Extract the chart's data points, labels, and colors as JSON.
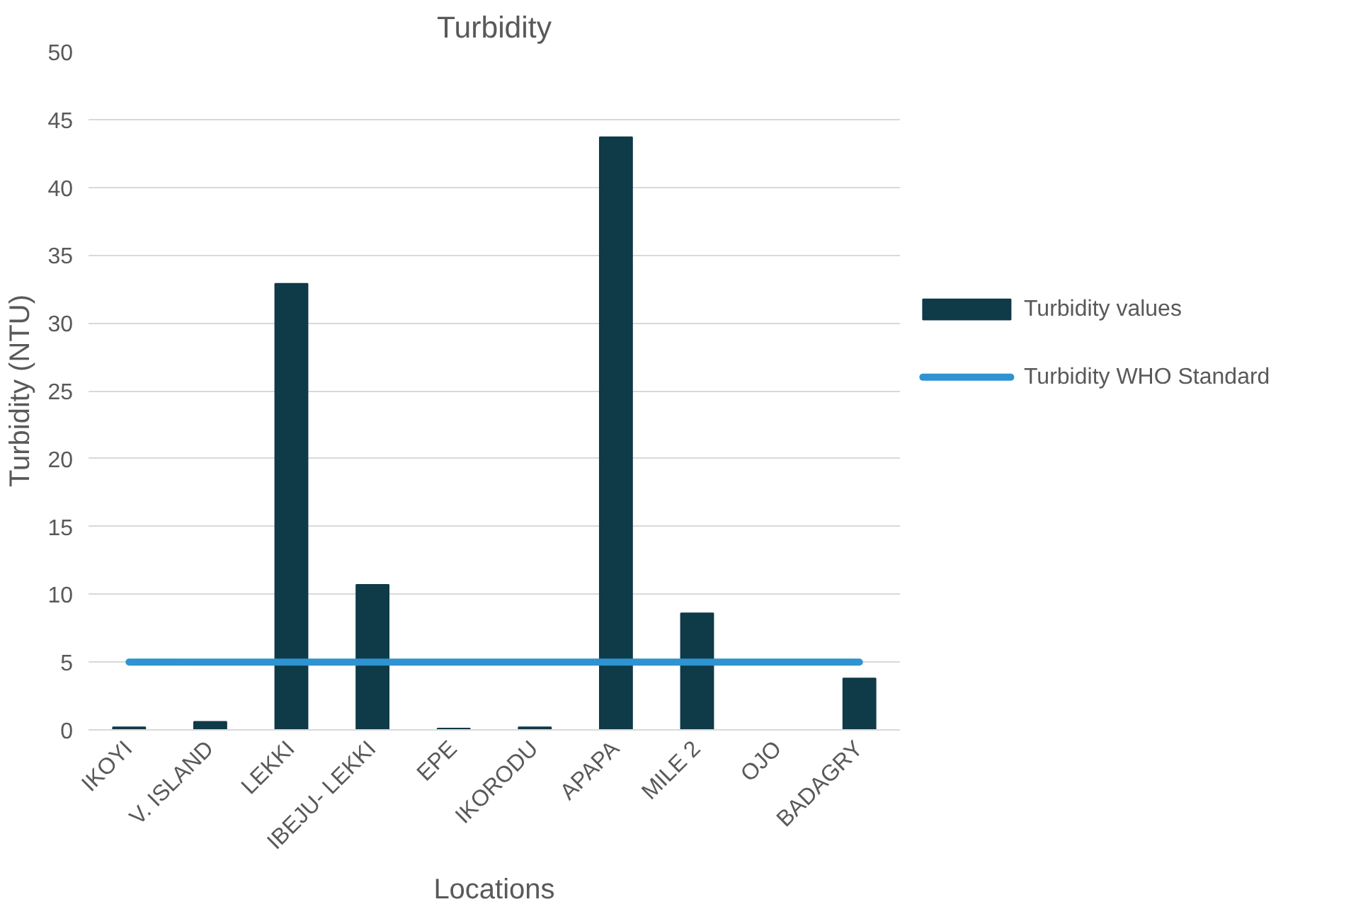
{
  "chart_data": {
    "type": "bar",
    "title": "Turbidity",
    "xlabel": "Locations",
    "ylabel": "Turbidity (NTU)",
    "categories": [
      "IKOYI",
      "V. ISLAND",
      "LEKKI",
      "IBEJU- LEKKI",
      "EPE",
      "IKORODU",
      "APAPA",
      "MILE 2",
      "OJO",
      "BADAGRY"
    ],
    "series": [
      {
        "name": "Turbidity values",
        "color": "#0f3a48",
        "values": [
          0.2,
          0.6,
          32.9,
          10.7,
          0.1,
          0.2,
          43.7,
          8.6,
          0,
          3.8
        ]
      },
      {
        "name": "Turbidity WHO Standard",
        "type": "line",
        "color": "#2e93d0",
        "values": [
          5,
          5,
          5,
          5,
          5,
          5,
          5,
          5,
          5,
          5
        ]
      }
    ],
    "ylim": [
      0,
      50
    ],
    "yticks": [
      0,
      5,
      10,
      15,
      20,
      25,
      30,
      35,
      40,
      45,
      50
    ],
    "grid": "y",
    "legend": "right"
  }
}
